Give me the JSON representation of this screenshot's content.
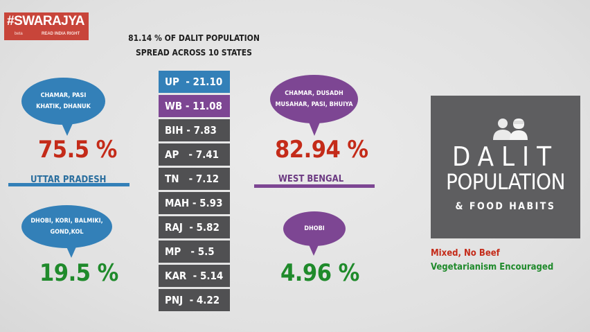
{
  "logo": {
    "brand": "#SWARAJYA",
    "beta": "beta",
    "tagline": "READ INDIA RIGHT"
  },
  "header": {
    "line1": "81.14 % OF  DALIT POPULATION",
    "line2": "SPREAD ACROSS 10 STATES"
  },
  "colors": {
    "blue": "#3380b8",
    "purple": "#7d4693",
    "dark_bar": "#505052",
    "red": "#c42b19",
    "green": "#1f8a2b",
    "box": "#5e5e60"
  },
  "chart_data": {
    "type": "table",
    "title": "81.14 % OF  DALIT POPULATION SPREAD ACROSS 10 STATES",
    "rows": [
      {
        "state": "UP",
        "label": "UP  - 21.10",
        "value": 21.1,
        "highlight": "blue"
      },
      {
        "state": "WB",
        "label": "WB - 11.08",
        "value": 11.08,
        "highlight": "purple"
      },
      {
        "state": "BIH",
        "label": "BIH - 7.83",
        "value": 7.83,
        "highlight": "none"
      },
      {
        "state": "AP",
        "label": "AP   - 7.41",
        "value": 7.41,
        "highlight": "none"
      },
      {
        "state": "TN",
        "label": "TN   - 7.12",
        "value": 7.12,
        "highlight": "none"
      },
      {
        "state": "MAH",
        "label": "MAH - 5.93",
        "value": 5.93,
        "highlight": "none"
      },
      {
        "state": "RAJ",
        "label": "RAJ  - 5.82",
        "value": 5.82,
        "highlight": "none"
      },
      {
        "state": "MP",
        "label": "MP   - 5.5",
        "value": 5.5,
        "highlight": "none"
      },
      {
        "state": "KAR",
        "label": "KAR  - 5.14",
        "value": 5.14,
        "highlight": "none"
      },
      {
        "state": "PNJ",
        "label": "PNJ  - 4.22",
        "value": 4.22,
        "highlight": "none"
      }
    ]
  },
  "up": {
    "state": "UTTAR PRADESH",
    "bubble_top": [
      "CHAMAR, PASI",
      "KHATIK, DHANUK"
    ],
    "pct_top": "75.5 %",
    "bubble_bottom": [
      "DHOBI, KORI, BALMIKI,",
      "GOND,KOL"
    ],
    "pct_bottom": "19.5 %"
  },
  "wb": {
    "state": "WEST BENGAL",
    "bubble_top": [
      "CHAMAR, DUSADH",
      "MUSAHAR, PASI, BHUIYA"
    ],
    "pct_top": "82.94 %",
    "bubble_bottom": [
      "DHOBI"
    ],
    "pct_bottom": "4.96 %"
  },
  "infobox": {
    "word1": "DALIT",
    "word2": "POPULATION",
    "word3": "& FOOD HABITS",
    "icon": "two-people-icon"
  },
  "legend": {
    "mixed": "Mixed, No Beef",
    "veg": "Vegetarianism Encouraged"
  }
}
